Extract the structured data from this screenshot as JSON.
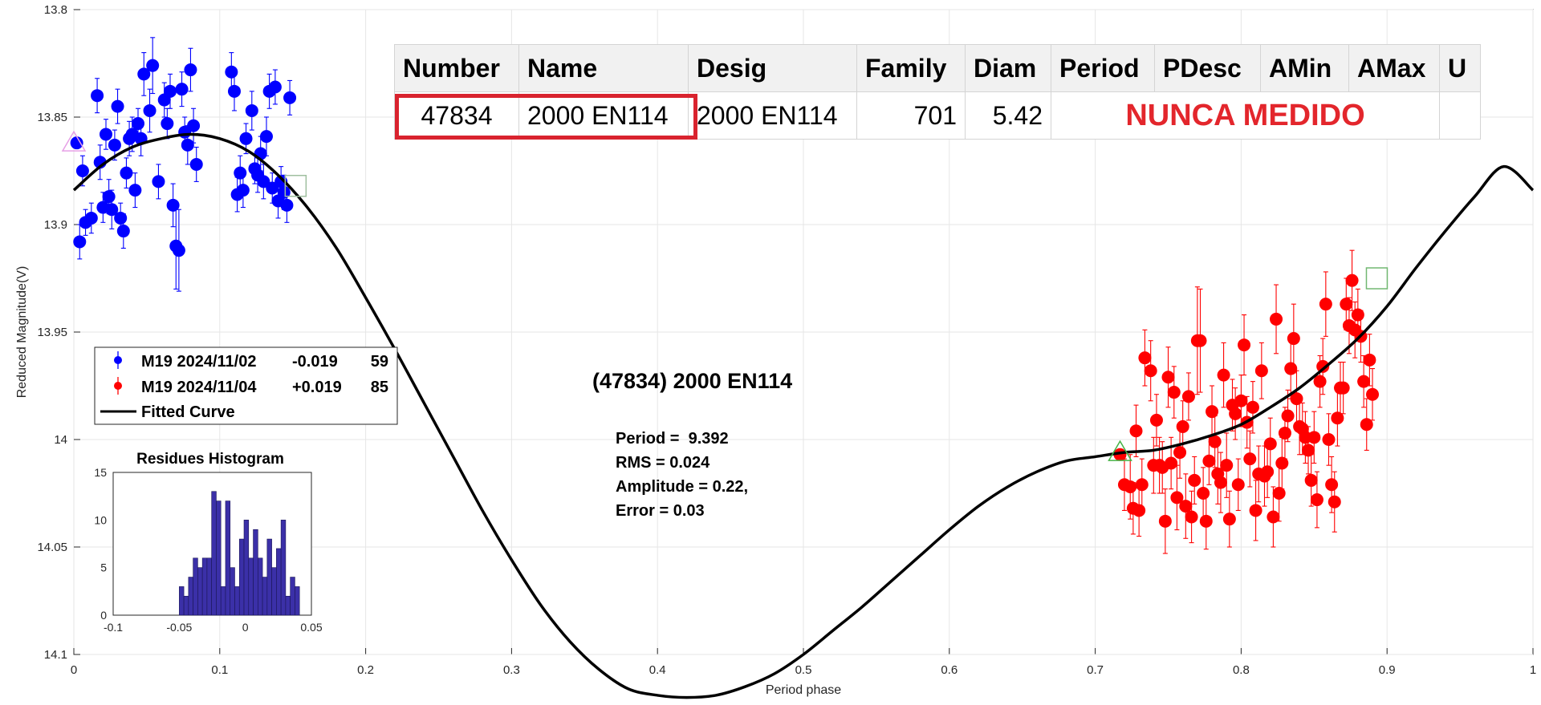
{
  "colors": {
    "series1": "#0000ff",
    "series2": "#ff0000",
    "curve": "#000000",
    "histogram": "#3b30a8",
    "highlight": "#d9232e",
    "note": "#e3262c"
  },
  "table": {
    "headers": [
      "Number",
      "Name",
      "Desig",
      "Family",
      "Diam",
      "Period",
      "PDesc",
      "AMin",
      "AMax",
      "U"
    ],
    "row": {
      "number": "47834",
      "name": "2000 EN114",
      "desig": "2000 EN114",
      "family": "701",
      "diam": "5.42",
      "note": "NUNCA MEDIDO"
    }
  },
  "chart_data": {
    "type": "scatter",
    "title": "(47834) 2000 EN114",
    "xlabel": "Period phase",
    "ylabel": "Reduced Magnitude(V)",
    "xlim": [
      0,
      1
    ],
    "ylim": [
      13.8,
      14.1
    ],
    "y_reversed": true,
    "grid": true,
    "x_ticks": [
      "0",
      "0.1",
      "0.2",
      "0.3",
      "0.4",
      "0.5",
      "0.6",
      "0.7",
      "0.8",
      "0.9",
      "1"
    ],
    "y_ticks": [
      "13.8",
      "13.85",
      "13.9",
      "13.95",
      "14",
      "14.05",
      "14.1"
    ],
    "legend": {
      "placement": "left",
      "entries": [
        {
          "session": "M19 2024/11/02",
          "offset": "-0.019",
          "count": "59"
        },
        {
          "session": "M19 2024/11/04",
          "offset": "+0.019",
          "count": "85"
        }
      ],
      "curve_label": "Fitted Curve"
    },
    "stats": [
      "Period =  9.392",
      "RMS = 0.024",
      "Amplitude = 0.22,",
      "Error = 0.03"
    ],
    "series": [
      {
        "name": "M19 2024/11/02",
        "color": "#0000ff",
        "points": [
          [
            0.002,
            13.862,
            0
          ],
          [
            0.004,
            13.908,
            0.008
          ],
          [
            0.006,
            13.875,
            0.007
          ],
          [
            0.008,
            13.899,
            0.006
          ],
          [
            0.012,
            13.897,
            0.007
          ],
          [
            0.016,
            13.84,
            0.008
          ],
          [
            0.018,
            13.871,
            0.008
          ],
          [
            0.02,
            13.892,
            0.007
          ],
          [
            0.022,
            13.858,
            0.007
          ],
          [
            0.024,
            13.887,
            0.008
          ],
          [
            0.026,
            13.893,
            0.009
          ],
          [
            0.028,
            13.863,
            0.007
          ],
          [
            0.03,
            13.845,
            0.008
          ],
          [
            0.032,
            13.897,
            0.007
          ],
          [
            0.034,
            13.903,
            0.008
          ],
          [
            0.036,
            13.876,
            0.007
          ],
          [
            0.038,
            13.86,
            0.008
          ],
          [
            0.04,
            13.858,
            0.008
          ],
          [
            0.042,
            13.884,
            0.008
          ],
          [
            0.044,
            13.853,
            0.007
          ],
          [
            0.046,
            13.86,
            0.008
          ],
          [
            0.048,
            13.83,
            0.01
          ],
          [
            0.052,
            13.847,
            0.01
          ],
          [
            0.054,
            13.826,
            0.013
          ],
          [
            0.058,
            13.88,
            0.008
          ],
          [
            0.062,
            13.842,
            0.008
          ],
          [
            0.064,
            13.853,
            0.007
          ],
          [
            0.066,
            13.838,
            0.008
          ],
          [
            0.068,
            13.891,
            0.01
          ],
          [
            0.07,
            13.91,
            0.02
          ],
          [
            0.072,
            13.912,
            0.019
          ],
          [
            0.074,
            13.837,
            0.008
          ],
          [
            0.076,
            13.857,
            0.007
          ],
          [
            0.078,
            13.863,
            0.009
          ],
          [
            0.08,
            13.828,
            0.01
          ],
          [
            0.082,
            13.854,
            0.008
          ],
          [
            0.084,
            13.872,
            0.008
          ],
          [
            0.108,
            13.829,
            0.009
          ],
          [
            0.11,
            13.838,
            0.009
          ],
          [
            0.112,
            13.886,
            0.008
          ],
          [
            0.114,
            13.876,
            0.008
          ],
          [
            0.116,
            13.884,
            0.008
          ],
          [
            0.118,
            13.86,
            0.007
          ],
          [
            0.122,
            13.847,
            0.009
          ],
          [
            0.124,
            13.874,
            0.007
          ],
          [
            0.126,
            13.877,
            0.008
          ],
          [
            0.128,
            13.867,
            0.008
          ],
          [
            0.13,
            13.88,
            0.008
          ],
          [
            0.132,
            13.859,
            0.009
          ],
          [
            0.134,
            13.838,
            0.008
          ],
          [
            0.136,
            13.883,
            0.007
          ],
          [
            0.138,
            13.836,
            0.008
          ],
          [
            0.14,
            13.889,
            0.008
          ],
          [
            0.142,
            13.88,
            0.007
          ],
          [
            0.144,
            13.885,
            0.008
          ],
          [
            0.146,
            13.891,
            0.008
          ],
          [
            0.148,
            13.841,
            0.008
          ]
        ]
      },
      {
        "name": "M19 2024/11/04",
        "color": "#ff0000",
        "points": [
          [
            0.717,
            14.007,
            0
          ],
          [
            0.72,
            14.021,
            0.012
          ],
          [
            0.724,
            14.022,
            0.015
          ],
          [
            0.726,
            14.032,
            0.012
          ],
          [
            0.728,
            13.996,
            0.012
          ],
          [
            0.73,
            14.033,
            0.012
          ],
          [
            0.732,
            14.021,
            0.012
          ],
          [
            0.734,
            13.962,
            0.013
          ],
          [
            0.738,
            13.968,
            0.014
          ],
          [
            0.74,
            14.012,
            0.013
          ],
          [
            0.742,
            13.991,
            0.012
          ],
          [
            0.744,
            14.012,
            0.013
          ],
          [
            0.746,
            14.013,
            0.012
          ],
          [
            0.748,
            14.038,
            0.015
          ],
          [
            0.75,
            13.971,
            0.014
          ],
          [
            0.752,
            14.011,
            0.012
          ],
          [
            0.754,
            13.978,
            0.012
          ],
          [
            0.756,
            14.027,
            0.015
          ],
          [
            0.758,
            14.006,
            0.012
          ],
          [
            0.76,
            13.994,
            0.012
          ],
          [
            0.762,
            14.031,
            0.015
          ],
          [
            0.764,
            13.98,
            0.011
          ],
          [
            0.766,
            14.036,
            0.012
          ],
          [
            0.768,
            14.019,
            0.011
          ],
          [
            0.77,
            13.954,
            0.025
          ],
          [
            0.772,
            13.954,
            0.024
          ],
          [
            0.774,
            14.025,
            0.012
          ],
          [
            0.776,
            14.038,
            0.013
          ],
          [
            0.778,
            14.01,
            0.011
          ],
          [
            0.78,
            13.987,
            0.012
          ],
          [
            0.782,
            14.001,
            0.012
          ],
          [
            0.784,
            14.016,
            0.014
          ],
          [
            0.786,
            14.02,
            0.014
          ],
          [
            0.788,
            13.97,
            0.015
          ],
          [
            0.79,
            14.012,
            0.015
          ],
          [
            0.792,
            14.037,
            0.013
          ],
          [
            0.794,
            13.984,
            0.012
          ],
          [
            0.796,
            13.988,
            0.012
          ],
          [
            0.798,
            14.021,
            0.012
          ],
          [
            0.8,
            13.982,
            0.012
          ],
          [
            0.802,
            13.956,
            0.014
          ],
          [
            0.804,
            13.992,
            0.012
          ],
          [
            0.806,
            14.009,
            0.013
          ],
          [
            0.808,
            13.985,
            0.012
          ],
          [
            0.81,
            14.033,
            0.014
          ],
          [
            0.812,
            14.016,
            0.013
          ],
          [
            0.814,
            13.968,
            0.013
          ],
          [
            0.816,
            14.017,
            0.014
          ],
          [
            0.818,
            14.015,
            0.012
          ],
          [
            0.82,
            14.002,
            0.012
          ],
          [
            0.822,
            14.036,
            0.014
          ],
          [
            0.824,
            13.944,
            0.016
          ],
          [
            0.826,
            14.025,
            0.013
          ],
          [
            0.828,
            14.011,
            0.012
          ],
          [
            0.83,
            13.997,
            0.012
          ],
          [
            0.832,
            13.989,
            0.012
          ],
          [
            0.834,
            13.967,
            0.014
          ],
          [
            0.836,
            13.953,
            0.016
          ],
          [
            0.838,
            13.981,
            0.013
          ],
          [
            0.84,
            13.994,
            0.013
          ],
          [
            0.842,
            13.995,
            0.012
          ],
          [
            0.844,
            13.999,
            0.012
          ],
          [
            0.846,
            14.005,
            0.011
          ],
          [
            0.848,
            14.019,
            0.012
          ],
          [
            0.85,
            13.999,
            0.012
          ],
          [
            0.852,
            14.028,
            0.013
          ],
          [
            0.854,
            13.973,
            0.012
          ],
          [
            0.856,
            13.966,
            0.013
          ],
          [
            0.858,
            13.937,
            0.015
          ],
          [
            0.86,
            14.0,
            0.012
          ],
          [
            0.862,
            14.021,
            0.013
          ],
          [
            0.864,
            14.029,
            0.014
          ],
          [
            0.866,
            13.99,
            0.013
          ],
          [
            0.868,
            13.976,
            0.012
          ],
          [
            0.87,
            13.976,
            0.012
          ],
          [
            0.872,
            13.937,
            0.012
          ],
          [
            0.874,
            13.947,
            0.013
          ],
          [
            0.876,
            13.926,
            0.014
          ],
          [
            0.878,
            13.949,
            0.013
          ],
          [
            0.88,
            13.942,
            0.012
          ],
          [
            0.882,
            13.952,
            0.012
          ],
          [
            0.884,
            13.973,
            0.012
          ],
          [
            0.886,
            13.993,
            0.012
          ],
          [
            0.888,
            13.963,
            0.012
          ],
          [
            0.89,
            13.979,
            0.012
          ]
        ]
      }
    ],
    "markers": [
      {
        "shape": "triangle",
        "color": "#e6a0e6",
        "x": 0.0,
        "y": 13.862
      },
      {
        "shape": "square",
        "color": "#9fbf9f",
        "x": 0.152,
        "y": 13.882
      },
      {
        "shape": "triangle",
        "color": "#45b245",
        "x": 0.717,
        "y": 14.006
      },
      {
        "shape": "square",
        "color": "#72b872",
        "x": 0.893,
        "y": 13.925
      }
    ],
    "curve": {
      "name": "Fitted Curve",
      "x": [
        0.0,
        0.02,
        0.04,
        0.06,
        0.08,
        0.1,
        0.12,
        0.14,
        0.16,
        0.18,
        0.2,
        0.22,
        0.24,
        0.26,
        0.28,
        0.3,
        0.32,
        0.34,
        0.36,
        0.38,
        0.4,
        0.42,
        0.44,
        0.46,
        0.48,
        0.5,
        0.52,
        0.54,
        0.56,
        0.58,
        0.6,
        0.62,
        0.64,
        0.66,
        0.68,
        0.7,
        0.72,
        0.74,
        0.76,
        0.78,
        0.8,
        0.82,
        0.84,
        0.86,
        0.88,
        0.9,
        0.92,
        0.94,
        0.96,
        0.98,
        1.0
      ],
      "y": [
        13.884,
        13.872,
        13.864,
        13.86,
        13.858,
        13.86,
        13.866,
        13.877,
        13.892,
        13.911,
        13.934,
        13.958,
        13.983,
        14.008,
        14.033,
        14.056,
        14.077,
        14.094,
        14.107,
        14.116,
        14.119,
        14.12,
        14.119,
        14.115,
        14.109,
        14.1,
        14.089,
        14.078,
        14.066,
        14.054,
        14.042,
        14.031,
        14.022,
        14.015,
        14.01,
        14.008,
        14.006,
        14.005,
        14.002,
        13.998,
        13.993,
        13.985,
        13.976,
        13.965,
        13.953,
        13.938,
        13.92,
        13.903,
        13.887,
        13.873,
        13.884
      ]
    },
    "histogram": {
      "title": "Residues Histogram",
      "xlim": [
        -0.1,
        0.05
      ],
      "ylim": [
        0,
        15
      ],
      "x_ticks": [
        "-0.1",
        "-0.05",
        "0",
        "0.05"
      ],
      "y_ticks": [
        "0",
        "5",
        "10",
        "15"
      ],
      "bin_start": -0.05,
      "bin_width": 0.0035,
      "counts": [
        3,
        2,
        4,
        6,
        5,
        6,
        6,
        13,
        12,
        3,
        12,
        5,
        3,
        8,
        10,
        6,
        9,
        6,
        4,
        8,
        5,
        7,
        10,
        2,
        4,
        3
      ]
    }
  }
}
